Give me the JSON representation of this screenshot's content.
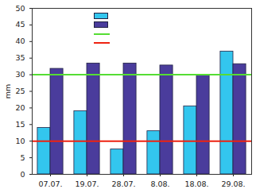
{
  "chart_data": {
    "type": "bar",
    "y_label": "mm",
    "categories": [
      "07.07.",
      "19.07.",
      "28.07.",
      "8.08.",
      "18.08.",
      "29.08."
    ],
    "series": [
      {
        "color": "#33c6ee",
        "values": [
          14,
          19,
          7.5,
          13,
          20.5,
          37
        ]
      },
      {
        "color": "#4a3c9c",
        "values": [
          31.8,
          33.4,
          33.4,
          32.8,
          30,
          33.2
        ]
      }
    ],
    "reference_lines": [
      {
        "value": 30,
        "color": "#55dd33"
      },
      {
        "value": 10,
        "color": "#ee2211"
      }
    ],
    "ylim": [
      0,
      50
    ],
    "yticks": [
      0,
      5,
      10,
      15,
      20,
      25,
      30,
      35,
      40,
      45,
      50
    ],
    "legend": "top"
  }
}
